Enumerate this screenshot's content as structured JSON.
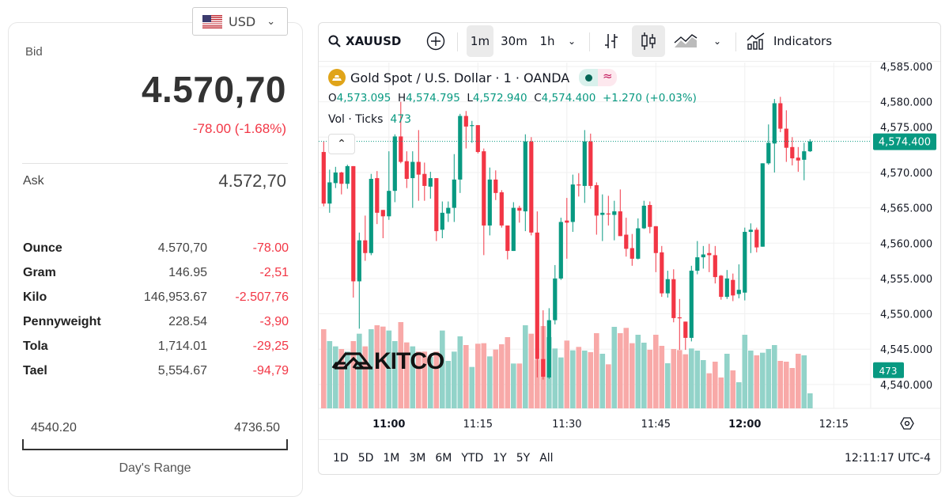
{
  "currency": {
    "selected": "USD",
    "flag_icon": "us-flag-icon"
  },
  "quote": {
    "bid_label": "Bid",
    "bid": "4.570,70",
    "change": "-78.00 (-1.68%)",
    "ask_label": "Ask",
    "ask": "4.572,70",
    "units": [
      {
        "unit": "Ounce",
        "price": "4.570,70",
        "change": "-78.00"
      },
      {
        "unit": "Gram",
        "price": "146.95",
        "change": "-2,51"
      },
      {
        "unit": "Kilo",
        "price": "146,953.67",
        "change": "-2.507,76"
      },
      {
        "unit": "Pennyweight",
        "price": "228.54",
        "change": "-3,90"
      },
      {
        "unit": "Tola",
        "price": "1,714.01",
        "change": "-29,25"
      },
      {
        "unit": "Tael",
        "price": "5,554.67",
        "change": "-94,79"
      }
    ],
    "range_low": "4540.20",
    "range_high": "4736.50",
    "range_label": "Day's Range"
  },
  "toolbar": {
    "symbol": "XAUUSD",
    "intervals": [
      "1m",
      "30m",
      "1h"
    ],
    "active_interval": "1m",
    "indicators": "Indicators"
  },
  "legend": {
    "title": "Gold Spot / U.S. Dollar · 1 · OANDA",
    "O": "4,573.095",
    "H": "4,574.795",
    "L": "4,572.940",
    "C": "4,574.400",
    "change": "+1.270 (+0.03%)",
    "vol_label": "Vol · Ticks",
    "vol_value": "473"
  },
  "watermark": "KITCO",
  "ranges": [
    "1D",
    "5D",
    "1M",
    "3M",
    "6M",
    "YTD",
    "1Y",
    "5Y",
    "All"
  ],
  "clock": "12:11:17 UTC-4",
  "colors": {
    "up": "#089981",
    "down": "#f23645",
    "up_volume": "#92d3c9",
    "down_volume": "#f8a9a8"
  },
  "chart_data": {
    "type": "candlestick",
    "interval": "1m",
    "ylim": [
      4538,
      4586
    ],
    "y_ticks": [
      "4,585.000",
      "4,580.000",
      "4,575.000",
      "4,570.000",
      "4,565.000",
      "4,560.000",
      "4,555.000",
      "4,550.000",
      "4,545.000",
      "4,540.000"
    ],
    "y_tick_values": [
      4585,
      4580,
      4575,
      4570,
      4565,
      4560,
      4555,
      4550,
      4545,
      4540
    ],
    "x_ticks": [
      "11:00",
      "11:15",
      "11:30",
      "11:45",
      "12:00",
      "12:15"
    ],
    "last_price_label": "4,574.400",
    "last_volume_label": "473",
    "candles": [
      [
        "10:49",
        4572.9,
        4574.4,
        4565.2,
        4565.6,
        2490
      ],
      [
        "10:50",
        4565.6,
        4570.4,
        4564.3,
        4568.6,
        2117
      ],
      [
        "10:51",
        4568.5,
        4570.8,
        4567.8,
        4570.0,
        1951
      ],
      [
        "10:52",
        4570.0,
        4570.1,
        4566.9,
        4568.4,
        1868
      ],
      [
        "10:53",
        4568.4,
        4571.1,
        4567.7,
        4570.9,
        1785
      ],
      [
        "10:54",
        4570.9,
        4570.9,
        4552.3,
        4554.6,
        2117
      ],
      [
        "10:55",
        4554.6,
        4561.5,
        4547.9,
        4560.4,
        2349
      ],
      [
        "10:56",
        4560.4,
        4563.9,
        4557.5,
        4558.6,
        1951
      ],
      [
        "10:57",
        4558.6,
        4569.8,
        4558.3,
        4569.1,
        2490
      ],
      [
        "10:58",
        4569.2,
        4570.2,
        4562.7,
        4564.3,
        2615
      ],
      [
        "10:59",
        4564.7,
        4564.7,
        4560.7,
        4563.8,
        2573
      ],
      [
        "11:00",
        4563.8,
        4573.0,
        4563.3,
        4567.4,
        2449
      ],
      [
        "11:01",
        4567.4,
        4575.4,
        4565.8,
        4575.1,
        2117
      ],
      [
        "11:02",
        4575.1,
        4580.0,
        4571.3,
        4571.5,
        2714
      ],
      [
        "11:03",
        4571.6,
        4573.0,
        4567.8,
        4569.1,
        2075
      ],
      [
        "11:04",
        4569.2,
        4573.0,
        4565.0,
        4571.5,
        1951
      ],
      [
        "11:05",
        4571.5,
        4576.0,
        4566.0,
        4569.7,
        1785
      ],
      [
        "11:06",
        4569.8,
        4571.4,
        4566.0,
        4568.1,
        1785
      ],
      [
        "11:07",
        4568.0,
        4570.1,
        4566.3,
        4569.2,
        1619
      ],
      [
        "11:08",
        4569.2,
        4569.2,
        4560.3,
        4561.7,
        1785
      ],
      [
        "11:09",
        4561.9,
        4565.9,
        4560.7,
        4564.3,
        2449
      ],
      [
        "11:10",
        4564.2,
        4565.9,
        4563.0,
        4565.0,
        1494
      ],
      [
        "11:11",
        4565.0,
        4572.6,
        4563.0,
        4569.0,
        1785
      ],
      [
        "11:12",
        4569.0,
        4578.3,
        4567.1,
        4578.0,
        2266
      ],
      [
        "11:13",
        4578.0,
        4578.7,
        4573.4,
        4576.5,
        1992
      ],
      [
        "11:14",
        4576.6,
        4577.3,
        4574.2,
        4576.7,
        1303
      ],
      [
        "11:15",
        4576.7,
        4576.7,
        4572.7,
        4572.9,
        2034
      ],
      [
        "11:16",
        4573.0,
        4573.4,
        4558.3,
        4562.5,
        2050
      ],
      [
        "11:17",
        4562.5,
        4570.7,
        4561.1,
        4569.0,
        1635
      ],
      [
        "11:18",
        4569.0,
        4570.3,
        4566.1,
        4567.1,
        1851
      ],
      [
        "11:19",
        4567.2,
        4567.5,
        4562.2,
        4562.5,
        2017
      ],
      [
        "11:20",
        4562.5,
        4562.5,
        4557.7,
        4558.9,
        2241
      ],
      [
        "11:21",
        4558.9,
        4565.8,
        4558.9,
        4565.0,
        1411
      ],
      [
        "11:22",
        4565.0,
        4565.3,
        4562.9,
        4564.6,
        1411
      ],
      [
        "11:23",
        4564.5,
        4575.4,
        4561.7,
        4574.4,
        2615
      ],
      [
        "11:24",
        4574.4,
        4575.0,
        4561.1,
        4561.5,
        2349
      ],
      [
        "11:25",
        4561.5,
        4564.5,
        4541.0,
        4543.6,
        1536
      ],
      [
        "11:26",
        4543.6,
        4550.5,
        4540.7,
        4541.1,
        2590
      ],
      [
        "11:27",
        4541.0,
        4550.8,
        4540.8,
        4549.1,
        2241
      ],
      [
        "11:28",
        4549.1,
        4556.9,
        4548.5,
        4555.0,
        1884
      ],
      [
        "11:29",
        4555.0,
        4563.6,
        4554.8,
        4563.0,
        1602
      ],
      [
        "11:30",
        4563.2,
        4566.4,
        4557.8,
        4562.9,
        2133
      ],
      [
        "11:31",
        4563.0,
        4569.7,
        4561.6,
        4568.3,
        1826
      ],
      [
        "11:32",
        4568.3,
        4569.9,
        4566.6,
        4568.2,
        1934
      ],
      [
        "11:33",
        4568.1,
        4576.0,
        4565.7,
        4574.4,
        1818
      ],
      [
        "11:34",
        4574.4,
        4575.5,
        4567.7,
        4568.1,
        1768
      ],
      [
        "11:35",
        4568.2,
        4568.6,
        4561.2,
        4563.9,
        2366
      ],
      [
        "11:36",
        4564.0,
        4566.9,
        4560.3,
        4564.3,
        1718
      ],
      [
        "11:37",
        4564.2,
        4566.7,
        4562.5,
        4564.1,
        1386
      ],
      [
        "11:38",
        4564.0,
        4566.0,
        4560.4,
        4564.5,
        2565
      ],
      [
        "11:39",
        4564.5,
        4567.6,
        4561.0,
        4561.0,
        2366
      ],
      [
        "11:40",
        4561.2,
        4563.6,
        4558.1,
        4559.2,
        2532
      ],
      [
        "11:41",
        4559.3,
        4561.3,
        4556.8,
        4557.8,
        2050
      ],
      [
        "11:42",
        4557.8,
        4563.5,
        4557.7,
        4562.1,
        2316
      ],
      [
        "11:43",
        4562.1,
        4566.0,
        4562.0,
        4565.3,
        2067
      ],
      [
        "11:44",
        4565.4,
        4565.9,
        4561.4,
        4562.3,
        1843
      ],
      [
        "11:45",
        4562.4,
        4562.4,
        4555.9,
        4558.6,
        2316
      ],
      [
        "11:46",
        4558.7,
        4559.6,
        4552.4,
        4552.9,
        1967
      ],
      [
        "11:47",
        4552.9,
        4556.1,
        4552.3,
        4554.9,
        1419
      ],
      [
        "11:48",
        4554.9,
        4556.3,
        4548.8,
        4549.4,
        1868
      ],
      [
        "11:49",
        4549.5,
        4552.1,
        4544.9,
        4549.4,
        1834
      ],
      [
        "11:50",
        4548.9,
        4548.9,
        4544.9,
        4546.6,
        1702
      ],
      [
        "11:51",
        4546.6,
        4556.8,
        4546.1,
        4556.1,
        1884
      ],
      [
        "11:52",
        4556.1,
        4560.3,
        4555.6,
        4558.0,
        1818
      ],
      [
        "11:53",
        4558.0,
        4559.6,
        4556.4,
        4558.4,
        1519
      ],
      [
        "11:54",
        4558.6,
        4559.9,
        4555.9,
        4558.3,
        1104
      ],
      [
        "11:55",
        4558.3,
        4559.6,
        4554.3,
        4555.2,
        1469
      ],
      [
        "11:56",
        4555.4,
        4555.5,
        4552.0,
        4552.4,
        971
      ],
      [
        "11:57",
        4552.4,
        4556.2,
        4552.1,
        4555.0,
        1718
      ],
      [
        "11:58",
        4554.8,
        4555.7,
        4551.8,
        4552.6,
        1195
      ],
      [
        "11:59",
        4552.8,
        4557.0,
        4552.2,
        4553.4,
        822
      ],
      [
        "12:00",
        4553.0,
        4562.2,
        4551.9,
        4561.6,
        2316
      ],
      [
        "12:01",
        4561.6,
        4562.8,
        4558.6,
        4561.9,
        1818
      ],
      [
        "12:02",
        4561.9,
        4562.2,
        4558.7,
        4559.4,
        1668
      ],
      [
        "12:03",
        4559.5,
        4571.3,
        4559.5,
        4571.3,
        1751
      ],
      [
        "12:04",
        4571.3,
        4576.8,
        4571.1,
        4574.2,
        1868
      ],
      [
        "12:05",
        4574.1,
        4580.4,
        4570.0,
        4579.8,
        1992
      ],
      [
        "12:06",
        4579.8,
        4580.7,
        4575.7,
        4576.2,
        1494
      ],
      [
        "12:07",
        4576.2,
        4578.8,
        4571.5,
        4573.5,
        1469
      ],
      [
        "12:08",
        4573.6,
        4575.0,
        4571.0,
        4572.0,
        1270
      ],
      [
        "12:09",
        4572.1,
        4573.6,
        4570.1,
        4571.7,
        1718
      ],
      [
        "12:10",
        4571.8,
        4574.2,
        4568.9,
        4573.0,
        1668
      ],
      [
        "12:11",
        4573.0,
        4574.7,
        4572.9,
        4574.4,
        473
      ]
    ]
  }
}
